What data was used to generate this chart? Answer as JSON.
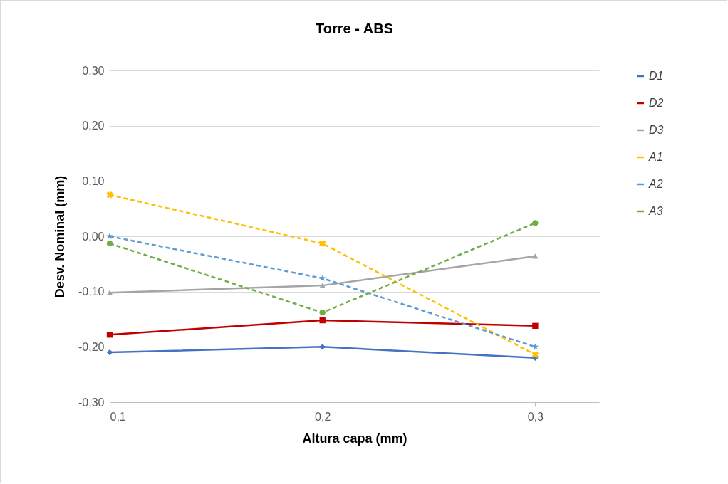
{
  "chart_data": {
    "type": "line",
    "title": "Torre - ABS",
    "xlabel": "Altura capa (mm)",
    "ylabel": "Desv. Nominal (mm)",
    "x": [
      0.1,
      0.2,
      0.3
    ],
    "xlim": [
      0.1,
      0.33
    ],
    "xticks": [
      {
        "value": 0.1,
        "label": "0,1"
      },
      {
        "value": 0.2,
        "label": "0,2"
      },
      {
        "value": 0.3,
        "label": "0,3"
      }
    ],
    "ylim": [
      -0.3,
      0.3
    ],
    "yticks": [
      {
        "value": -0.3,
        "label": "-0,30"
      },
      {
        "value": -0.2,
        "label": "-0,20"
      },
      {
        "value": -0.1,
        "label": "-0,10"
      },
      {
        "value": 0,
        "label": "0,00"
      },
      {
        "value": 0.1,
        "label": "0,10"
      },
      {
        "value": 0.2,
        "label": "0,20"
      },
      {
        "value": 0.3,
        "label": "0,30"
      }
    ],
    "grid": "y",
    "legend": "right",
    "series": [
      {
        "name": "D1",
        "color": "#4472c4",
        "marker": "diamond",
        "line_style": "solid",
        "values": [
          -0.21,
          -0.2,
          -0.22
        ]
      },
      {
        "name": "D2",
        "color": "#c00000",
        "marker": "square",
        "line_style": "solid",
        "values": [
          -0.178,
          -0.152,
          -0.162
        ]
      },
      {
        "name": "D3",
        "color": "#a5a5a5",
        "marker": "triangle",
        "line_style": "solid",
        "values": [
          -0.102,
          -0.089,
          -0.036
        ]
      },
      {
        "name": "A1",
        "color": "#ffc000",
        "marker": "cross",
        "line_style": "dashed",
        "values": [
          0.075,
          -0.013,
          -0.214
        ]
      },
      {
        "name": "A2",
        "color": "#5b9bd5",
        "marker": "star",
        "line_style": "dashed",
        "values": [
          0.0,
          -0.076,
          -0.2
        ]
      },
      {
        "name": "A3",
        "color": "#70ad47",
        "marker": "circle",
        "line_style": "dashed",
        "values": [
          -0.013,
          -0.138,
          0.024
        ]
      }
    ]
  }
}
